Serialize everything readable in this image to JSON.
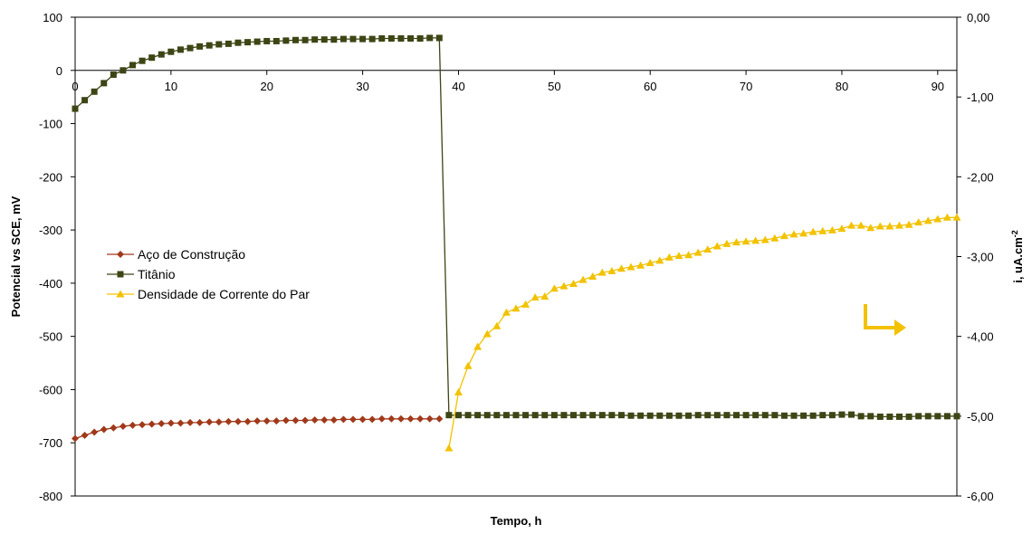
{
  "chart_data": {
    "type": "line",
    "title": "",
    "xlabel": "Tempo, h",
    "ylabel": "Potencial vs SCE, mV",
    "y2label": "i, uA.cm",
    "y2label_sup": "-2",
    "xlim": [
      0,
      92
    ],
    "ylim": [
      -800,
      100
    ],
    "y2lim": [
      -6.0,
      0.0
    ],
    "x_ticks": [
      "0",
      "10",
      "20",
      "30",
      "40",
      "50",
      "60",
      "70",
      "80",
      "90"
    ],
    "x_tick_values": [
      0,
      10,
      20,
      30,
      40,
      50,
      60,
      70,
      80,
      90
    ],
    "y_ticks": [
      "100",
      "0",
      "-100",
      "-200",
      "-300",
      "-400",
      "-500",
      "-600",
      "-700",
      "-800"
    ],
    "y_tick_values": [
      100,
      0,
      -100,
      -200,
      -300,
      -400,
      -500,
      -600,
      -700,
      -800
    ],
    "y2_ticks": [
      "0,00",
      "-1,00",
      "-2,00",
      "-3,00",
      "-4,00",
      "-5,00",
      "-6,00"
    ],
    "y2_tick_values": [
      0,
      -1,
      -2,
      -3,
      -4,
      -5,
      -6
    ],
    "x_axis_at_y": 0,
    "grid": false,
    "legend_position": "left-middle",
    "series": [
      {
        "name": "Aço de Construção",
        "axis": "left",
        "color": "#A0391A",
        "marker": "diamond",
        "x": [
          0,
          1,
          2,
          3,
          4,
          5,
          6,
          7,
          8,
          9,
          10,
          11,
          12,
          13,
          14,
          15,
          16,
          17,
          18,
          19,
          20,
          21,
          22,
          23,
          24,
          25,
          26,
          27,
          28,
          29,
          30,
          31,
          32,
          33,
          34,
          35,
          36,
          37,
          38
        ],
        "y": [
          -692,
          -686,
          -680,
          -675,
          -672,
          -669,
          -667,
          -666,
          -665,
          -664,
          -663,
          -663,
          -662,
          -662,
          -661,
          -661,
          -660,
          -660,
          -660,
          -659,
          -659,
          -659,
          -658,
          -658,
          -658,
          -657,
          -657,
          -657,
          -656,
          -656,
          -656,
          -656,
          -655,
          -655,
          -655,
          -655,
          -655,
          -655,
          -655
        ]
      },
      {
        "name": "Titânio",
        "axis": "left",
        "color": "#3D4514",
        "marker": "square",
        "x": [
          0,
          1,
          2,
          3,
          4,
          5,
          6,
          7,
          8,
          9,
          10,
          11,
          12,
          13,
          14,
          15,
          16,
          17,
          18,
          19,
          20,
          21,
          22,
          23,
          24,
          25,
          26,
          27,
          28,
          29,
          30,
          31,
          32,
          33,
          34,
          35,
          36,
          37,
          38,
          39,
          40,
          41,
          42,
          43,
          44,
          45,
          46,
          47,
          48,
          49,
          50,
          51,
          52,
          53,
          54,
          55,
          56,
          57,
          58,
          59,
          60,
          61,
          62,
          63,
          64,
          65,
          66,
          67,
          68,
          69,
          70,
          71,
          72,
          73,
          74,
          75,
          76,
          77,
          78,
          79,
          80,
          81,
          82,
          83,
          84,
          85,
          86,
          87,
          88,
          89,
          90,
          91,
          92
        ],
        "y": [
          -72,
          -56,
          -40,
          -24,
          -8,
          0,
          10,
          18,
          24,
          30,
          35,
          39,
          42,
          45,
          47,
          49,
          50,
          52,
          53,
          54,
          55,
          55,
          56,
          57,
          57,
          58,
          58,
          58,
          59,
          59,
          59,
          59,
          60,
          60,
          60,
          60,
          60,
          61,
          61,
          -648,
          -648,
          -648,
          -648,
          -648,
          -648,
          -648,
          -648,
          -648,
          -648,
          -648,
          -648,
          -648,
          -648,
          -648,
          -648,
          -648,
          -648,
          -648,
          -649,
          -649,
          -649,
          -649,
          -649,
          -649,
          -649,
          -648,
          -648,
          -648,
          -648,
          -648,
          -648,
          -648,
          -648,
          -648,
          -649,
          -649,
          -649,
          -649,
          -648,
          -648,
          -647,
          -647,
          -650,
          -650,
          -651,
          -651,
          -651,
          -651,
          -650,
          -650,
          -650,
          -650,
          -650
        ]
      },
      {
        "name": "Densidade de Corrente do Par",
        "axis": "right",
        "color": "#F2C200",
        "marker": "triangle",
        "x": [
          39,
          40,
          41,
          42,
          43,
          44,
          45,
          46,
          47,
          48,
          49,
          50,
          51,
          52,
          53,
          54,
          55,
          56,
          57,
          58,
          59,
          60,
          61,
          62,
          63,
          64,
          65,
          66,
          67,
          68,
          69,
          70,
          71,
          72,
          73,
          74,
          75,
          76,
          77,
          78,
          79,
          80,
          81,
          82,
          83,
          84,
          85,
          86,
          87,
          88,
          89,
          90,
          91,
          92
        ],
        "y": [
          -5.4,
          -4.7,
          -4.37,
          -4.13,
          -3.97,
          -3.87,
          -3.7,
          -3.65,
          -3.6,
          -3.51,
          -3.5,
          -3.4,
          -3.37,
          -3.34,
          -3.29,
          -3.25,
          -3.2,
          -3.18,
          -3.15,
          -3.13,
          -3.11,
          -3.08,
          -3.05,
          -3.01,
          -2.99,
          -2.98,
          -2.95,
          -2.91,
          -2.87,
          -2.84,
          -2.82,
          -2.81,
          -2.8,
          -2.79,
          -2.77,
          -2.74,
          -2.72,
          -2.71,
          -2.69,
          -2.68,
          -2.67,
          -2.65,
          -2.61,
          -2.61,
          -2.64,
          -2.62,
          -2.62,
          -2.61,
          -2.6,
          -2.57,
          -2.55,
          -2.53,
          -2.51,
          -2.51
        ]
      }
    ],
    "annotation": {
      "type": "arrow",
      "direction": "right",
      "color": "#F2C200",
      "meaning": "right-axis indicator"
    }
  }
}
